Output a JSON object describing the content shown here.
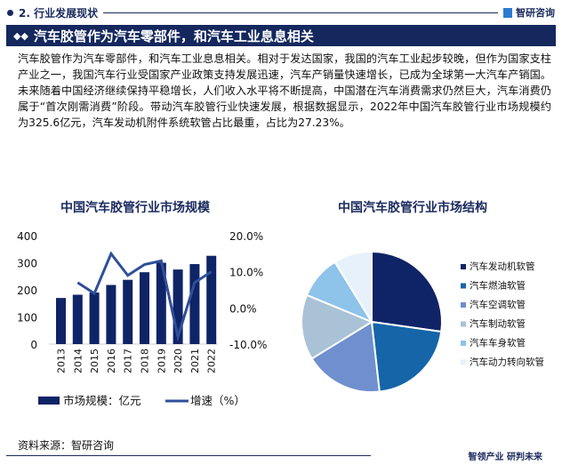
{
  "header": {
    "section_title": "2. 行业发展现状",
    "brand": "智研咨询",
    "banner_title": "汽车胶管作为汽车零部件，和汽车工业息息相关"
  },
  "body_text": "汽车胶管作为汽车零部件，和汽车工业息息相关。相对于发达国家，我国的汽车工业起步较晚，但作为国家支柱产业之一，我国汽车行业受国家产业政策支持发展迅速，汽车产销量快速增长，已成为全球第一大汽车产销国。未来随着中国经济继续保持平稳增长，人们收入水平将不断提高，中国潜在汽车消费需求仍然巨大，汽车消费仍属于“首次刚需消费”阶段。带动汽车胶管行业快速发展，根据数据显示，2022年中国汽车胶管行业市场规模约为325.6亿元，汽车发动机附件系统软管占比最重，占比为27.23%。",
  "footer": {
    "source": "资料来源：智研咨询",
    "slogan": "智领产业 研判未来"
  },
  "colors": {
    "navy": "#14285e",
    "bar": "#0f2466",
    "line": "#2f4f9a"
  },
  "chart_data": [
    {
      "type": "bar",
      "title": "中国汽车胶管行业市场规模",
      "categories": [
        "2013",
        "2014",
        "2015",
        "2016",
        "2017",
        "2018",
        "2019",
        "2020",
        "2021",
        "2022"
      ],
      "series": [
        {
          "name": "市场规模：亿元",
          "type": "bar",
          "axis": "left",
          "values": [
            170,
            182,
            190,
            218,
            237,
            265,
            300,
            275,
            295,
            325.6
          ]
        },
        {
          "name": "增速（%）",
          "type": "line",
          "axis": "right",
          "values": [
            null,
            7.0,
            4.0,
            15.0,
            9.0,
            12.0,
            13.0,
            -8.0,
            7.0,
            10.0
          ]
        }
      ],
      "left_axis": {
        "ylim": [
          0,
          400
        ],
        "ticks": [
          "0",
          "100",
          "200",
          "300",
          "400"
        ]
      },
      "right_axis": {
        "ylim": [
          -10,
          20
        ],
        "ticks": [
          "-10.0%",
          "0.0%",
          "10.0%",
          "20.0%"
        ]
      },
      "legend": [
        "市场规模：亿元",
        "增速（%）"
      ],
      "legend_position": "bottom",
      "grid": false
    },
    {
      "type": "pie",
      "title": "中国汽车胶管行业市场结构",
      "categories": [
        "汽车发动机软管",
        "汽车燃油软管",
        "汽车空调软管",
        "汽车制动软管",
        "汽车车身软管",
        "汽车动力转向软管"
      ],
      "values": [
        27.23,
        21,
        18,
        15,
        10,
        8.77
      ],
      "colors": [
        "#0f2466",
        "#1565a8",
        "#6f8fce",
        "#a9c2d6",
        "#8ec3ea",
        "#e6f1fb"
      ],
      "legend_position": "right"
    }
  ]
}
